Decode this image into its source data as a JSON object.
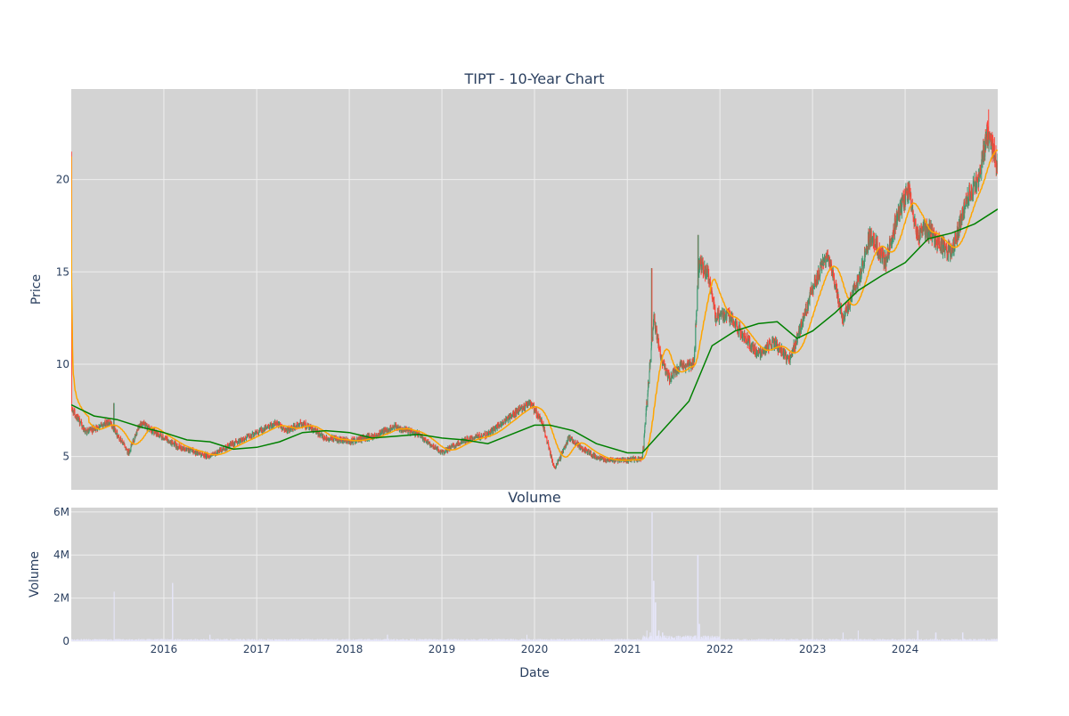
{
  "chart_data": [
    {
      "type": "candlestick",
      "title": "TIPT - 10-Year Chart",
      "xlabel": "",
      "ylabel": "Price",
      "xlim": [
        "2015-01-01",
        "2024-12-31"
      ],
      "ylim": [
        3.2,
        24.9
      ],
      "y_ticks": [
        5,
        10,
        15,
        20
      ],
      "x_ticks": [
        "2016",
        "2017",
        "2018",
        "2019",
        "2020",
        "2021",
        "2022",
        "2023",
        "2024"
      ],
      "grid": true,
      "colors": {
        "up": "#3d9970",
        "down": "#ff4136",
        "ma_short": "#ffa500",
        "ma_long": "#008000",
        "background": "#d3d3d3",
        "grid": "#eeeeee"
      },
      "close_anchors": [
        [
          "2015-01-02",
          7.6
        ],
        [
          "2015-03-01",
          6.3
        ],
        [
          "2015-06-01",
          6.9
        ],
        [
          "2015-08-15",
          5.2
        ],
        [
          "2015-10-01",
          6.8
        ],
        [
          "2016-01-01",
          6.0
        ],
        [
          "2016-03-01",
          5.5
        ],
        [
          "2016-07-01",
          5.0
        ],
        [
          "2016-10-01",
          5.7
        ],
        [
          "2017-01-01",
          6.3
        ],
        [
          "2017-03-15",
          6.8
        ],
        [
          "2017-05-01",
          6.4
        ],
        [
          "2017-07-01",
          6.8
        ],
        [
          "2017-10-01",
          6.0
        ],
        [
          "2018-01-01",
          5.8
        ],
        [
          "2018-04-01",
          6.1
        ],
        [
          "2018-07-01",
          6.6
        ],
        [
          "2018-10-01",
          6.2
        ],
        [
          "2019-01-01",
          5.2
        ],
        [
          "2019-04-01",
          5.9
        ],
        [
          "2019-07-01",
          6.2
        ],
        [
          "2019-10-01",
          7.2
        ],
        [
          "2019-12-15",
          7.9
        ],
        [
          "2020-02-01",
          6.8
        ],
        [
          "2020-03-20",
          4.3
        ],
        [
          "2020-05-15",
          6.0
        ],
        [
          "2020-08-01",
          5.2
        ],
        [
          "2020-10-01",
          4.8
        ],
        [
          "2021-01-01",
          4.8
        ],
        [
          "2021-03-01",
          4.9
        ],
        [
          "2021-03-25",
          9.0
        ],
        [
          "2021-04-15",
          12.5
        ],
        [
          "2021-05-15",
          10.3
        ],
        [
          "2021-06-15",
          9.2
        ],
        [
          "2021-08-01",
          9.9
        ],
        [
          "2021-09-20",
          10.0
        ],
        [
          "2021-10-10",
          15.5
        ],
        [
          "2021-11-15",
          14.8
        ],
        [
          "2021-12-15",
          12.6
        ],
        [
          "2022-02-01",
          12.7
        ],
        [
          "2022-04-01",
          11.6
        ],
        [
          "2022-06-01",
          10.5
        ],
        [
          "2022-08-01",
          11.2
        ],
        [
          "2022-10-01",
          10.2
        ],
        [
          "2022-11-15",
          12.0
        ],
        [
          "2022-12-31",
          14.0
        ],
        [
          "2023-03-01",
          16.0
        ],
        [
          "2023-05-01",
          12.5
        ],
        [
          "2023-07-01",
          14.5
        ],
        [
          "2023-08-15",
          17.0
        ],
        [
          "2023-10-15",
          15.5
        ],
        [
          "2023-12-01",
          18.0
        ],
        [
          "2024-01-15",
          19.5
        ],
        [
          "2024-02-15",
          17.0
        ],
        [
          "2024-04-01",
          17.3
        ],
        [
          "2024-05-15",
          16.5
        ],
        [
          "2024-07-01",
          16.0
        ],
        [
          "2024-09-01",
          19.0
        ],
        [
          "2024-10-15",
          20.0
        ],
        [
          "2024-11-20",
          22.5
        ],
        [
          "2024-12-31",
          20.8
        ]
      ],
      "spikes": [
        [
          "2015-06-18",
          7.9
        ],
        [
          "2021-04-07",
          15.2
        ],
        [
          "2021-10-07",
          17.0
        ],
        [
          "2024-02-22",
          14.8
        ],
        [
          "2024-11-24",
          23.8
        ]
      ],
      "series": [
        {
          "name": "",
          "kind": "ma_short",
          "window_days": 50
        },
        {
          "name": "",
          "kind": "ma_long",
          "values": [
            [
              "2015-01-01",
              7.8
            ],
            [
              "2015-04-01",
              7.2
            ],
            [
              "2015-07-01",
              7.0
            ],
            [
              "2015-10-01",
              6.6
            ],
            [
              "2016-01-01",
              6.3
            ],
            [
              "2016-04-01",
              5.9
            ],
            [
              "2016-07-01",
              5.8
            ],
            [
              "2016-10-01",
              5.4
            ],
            [
              "2017-01-01",
              5.5
            ],
            [
              "2017-04-01",
              5.8
            ],
            [
              "2017-07-01",
              6.3
            ],
            [
              "2017-10-01",
              6.4
            ],
            [
              "2018-01-01",
              6.3
            ],
            [
              "2018-04-01",
              6.0
            ],
            [
              "2018-07-01",
              6.1
            ],
            [
              "2018-10-01",
              6.2
            ],
            [
              "2019-01-01",
              6.0
            ],
            [
              "2019-04-01",
              5.9
            ],
            [
              "2019-07-01",
              5.7
            ],
            [
              "2019-10-01",
              6.2
            ],
            [
              "2020-01-01",
              6.7
            ],
            [
              "2020-03-01",
              6.7
            ],
            [
              "2020-06-01",
              6.4
            ],
            [
              "2020-09-01",
              5.7
            ],
            [
              "2021-01-01",
              5.2
            ],
            [
              "2021-03-01",
              5.2
            ],
            [
              "2021-06-01",
              6.6
            ],
            [
              "2021-09-01",
              8.0
            ],
            [
              "2021-12-01",
              11.0
            ],
            [
              "2022-03-01",
              11.8
            ],
            [
              "2022-06-01",
              12.2
            ],
            [
              "2022-08-15",
              12.3
            ],
            [
              "2022-11-01",
              11.4
            ],
            [
              "2023-01-01",
              11.8
            ],
            [
              "2023-04-01",
              12.8
            ],
            [
              "2023-07-01",
              14.0
            ],
            [
              "2023-10-01",
              14.8
            ],
            [
              "2024-01-01",
              15.5
            ],
            [
              "2024-04-01",
              16.8
            ],
            [
              "2024-07-01",
              17.1
            ],
            [
              "2024-10-01",
              17.6
            ],
            [
              "2024-12-31",
              18.4
            ]
          ]
        }
      ]
    },
    {
      "type": "bar",
      "title": "Volume",
      "xlabel": "Date",
      "ylabel": "Volume",
      "ylim": [
        0,
        6200000
      ],
      "y_ticks": [
        0,
        2000000,
        4000000,
        6000000
      ],
      "y_tick_labels": [
        "0",
        "2M",
        "4M",
        "6M"
      ],
      "x_ticks": [
        "2016",
        "2017",
        "2018",
        "2019",
        "2020",
        "2021",
        "2022",
        "2023",
        "2024"
      ],
      "bar_color": "#e6e6fa",
      "baseline": 60000,
      "spikes": [
        [
          "2015-06-20",
          2300000
        ],
        [
          "2016-02-05",
          2700000
        ],
        [
          "2016-07-01",
          300000
        ],
        [
          "2018-06-01",
          300000
        ],
        [
          "2019-12-01",
          300000
        ],
        [
          "2021-03-20",
          500000
        ],
        [
          "2021-04-02",
          400000
        ],
        [
          "2021-04-09",
          6000000
        ],
        [
          "2021-04-15",
          2800000
        ],
        [
          "2021-04-22",
          1800000
        ],
        [
          "2021-05-05",
          500000
        ],
        [
          "2021-05-20",
          400000
        ],
        [
          "2021-10-06",
          4000000
        ],
        [
          "2021-10-12",
          800000
        ],
        [
          "2023-05-01",
          400000
        ],
        [
          "2023-07-01",
          500000
        ],
        [
          "2024-02-20",
          500000
        ],
        [
          "2024-05-01",
          400000
        ],
        [
          "2024-08-15",
          400000
        ]
      ]
    }
  ]
}
